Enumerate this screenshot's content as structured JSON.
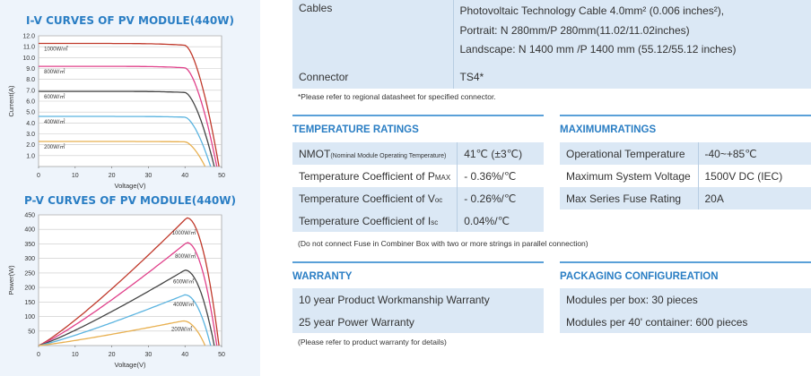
{
  "iv_chart": {
    "title": "I-V CURVES OF PV MODULE(440W)",
    "ylabel": "Current(A)",
    "xlabel": "Voltage(V)"
  },
  "pv_chart": {
    "title": "P-V CURVES OF PV MODULE(440W)",
    "ylabel": "Power(W)",
    "xlabel": "Voltage(V)"
  },
  "chart_data": [
    {
      "type": "line",
      "title": "I-V CURVES OF PV MODULE(440W)",
      "xlabel": "Voltage(V)",
      "ylabel": "Current(A)",
      "xlim": [
        0,
        50
      ],
      "ylim": [
        0,
        12
      ],
      "x_ticks": [
        "0",
        "10",
        "20",
        "30",
        "40",
        "50"
      ],
      "y_ticks": [
        "1.0",
        "2.0",
        "3.0",
        "4.0",
        "5.0",
        "6.0",
        "7.0",
        "8.0",
        "9.0",
        "10.0",
        "11.0",
        "12.0"
      ],
      "grid": true,
      "series": [
        {
          "name": "1000W/㎡",
          "color": "#c0392b",
          "isc": 11.3,
          "voc": 49.3,
          "knee_v": 40
        },
        {
          "name": "800W/㎡",
          "color": "#e0408a",
          "isc": 9.2,
          "voc": 48.7,
          "knee_v": 40
        },
        {
          "name": "600W/㎡",
          "color": "#444444",
          "isc": 6.9,
          "voc": 48.0,
          "knee_v": 40
        },
        {
          "name": "400W/㎡",
          "color": "#5bb4e0",
          "isc": 4.6,
          "voc": 47.0,
          "knee_v": 40
        },
        {
          "name": "200W/㎡",
          "color": "#e8b050",
          "isc": 2.3,
          "voc": 45.5,
          "knee_v": 40
        }
      ]
    },
    {
      "type": "line",
      "title": "P-V CURVES OF PV MODULE(440W)",
      "xlabel": "Voltage(V)",
      "ylabel": "Power(W)",
      "xlim": [
        0,
        50
      ],
      "ylim": [
        0,
        450
      ],
      "x_ticks": [
        "0",
        "10",
        "20",
        "30",
        "40",
        "50"
      ],
      "y_ticks": [
        "50",
        "100",
        "150",
        "200",
        "250",
        "300",
        "350",
        "400",
        "450"
      ],
      "grid": true,
      "series": [
        {
          "name": "1000W/㎡",
          "color": "#c0392b",
          "pmax": 440,
          "vmp": 40.5,
          "voc": 49.3
        },
        {
          "name": "800W/㎡",
          "color": "#e0408a",
          "pmax": 355,
          "vmp": 40.5,
          "voc": 48.7
        },
        {
          "name": "600W/㎡",
          "color": "#444444",
          "pmax": 260,
          "vmp": 40.0,
          "voc": 48.0
        },
        {
          "name": "400W/㎡",
          "color": "#5bb4e0",
          "pmax": 175,
          "vmp": 40.0,
          "voc": 47.0
        },
        {
          "name": "200W/㎡",
          "color": "#e8b050",
          "pmax": 85,
          "vmp": 39.5,
          "voc": 45.5
        }
      ]
    }
  ],
  "cables": {
    "label": "Cables",
    "line1": "Photovoltaic Technology Cable 4.0mm² (0.006 inches²),",
    "line2": "Portrait: N 280mm/P 280mm(11.02/11.02inches)",
    "line3": "Landscape: N 1400 mm /P 1400 mm (55.12/55.12 inches)"
  },
  "connector": {
    "label": "Connector",
    "value": "TS4*"
  },
  "connector_note": "*Please refer to regional datasheet for specified connector.",
  "temperature": {
    "title": "TEMPERATURE RATINGS",
    "rows": [
      {
        "label": "NMOT",
        "label_small": "(Nominal Module Operating Temperature)",
        "value": "41℃ (±3℃)"
      },
      {
        "label": "Temperature Coefficient of P",
        "sub": "MAX",
        "value": "- 0.36%/℃"
      },
      {
        "label": "Temperature Coefficient of V",
        "sub": "oc",
        "value": "- 0.26%/℃"
      },
      {
        "label": "Temperature Coefficient of I",
        "sub": "sc",
        "value": "0.04%/℃"
      }
    ]
  },
  "max_ratings": {
    "title": "MAXIMUMRATINGS",
    "rows": [
      {
        "label": "Operational Temperature",
        "value": "-40~+85℃"
      },
      {
        "label": "Maximum System Voltage",
        "value": "1500V DC (IEC)"
      },
      {
        "label": "Max Series Fuse Rating",
        "value": "20A"
      }
    ]
  },
  "fuse_note": "(Do not connect Fuse in Combiner Box with two or more strings in parallel connection)",
  "warranty": {
    "title": "WARRANTY",
    "rows": [
      "10 year Product Workmanship Warranty",
      "25 year Power Warranty"
    ],
    "note": "(Please refer to product warranty for details)"
  },
  "packaging": {
    "title": "PACKAGING CONFIGUREATION",
    "rows": [
      "Modules per box: 30 pieces",
      "Modules per 40' container: 600 pieces"
    ]
  }
}
